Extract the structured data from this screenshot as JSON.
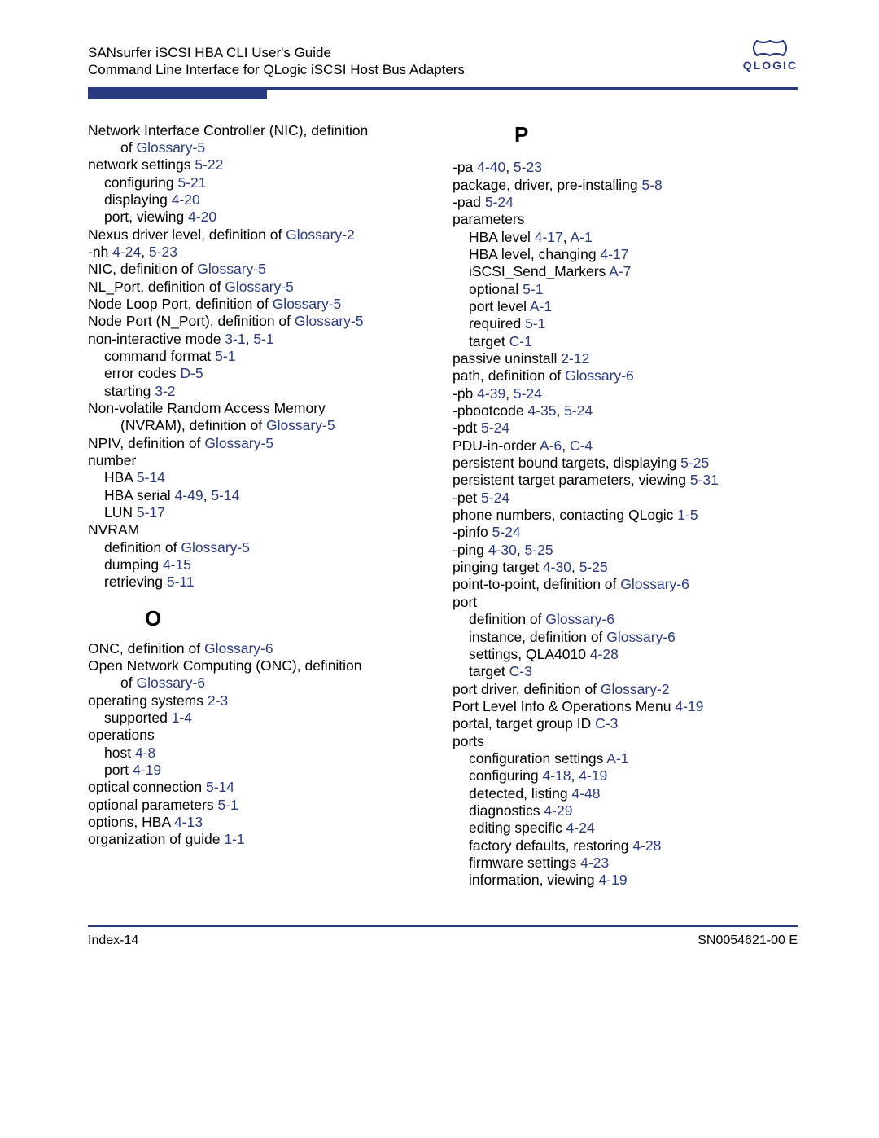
{
  "colors": {
    "link": "#2a3a7f",
    "rule": "#2a3a7f",
    "text": "#000000",
    "background": "#ffffff"
  },
  "typography": {
    "body_font": "Arial",
    "body_size_pt": 13,
    "heading_size_pt": 20
  },
  "header": {
    "title": "SANsurfer iSCSI HBA CLI User's Guide",
    "subtitle": "Command Line Interface for QLogic iSCSI Host Bus Adapters",
    "logo_text": "QLOGIC"
  },
  "footer": {
    "left": "Index-14",
    "right": "SN0054621-00  E"
  },
  "left_column": [
    {
      "t": "Network Interface Controller (NIC), definition",
      "i": 0
    },
    {
      "t": "of   ",
      "r": "Glossary-5",
      "i": 2
    },
    {
      "t": "network settings   ",
      "r": "5-22",
      "i": 0
    },
    {
      "t": "configuring   ",
      "r": "5-21",
      "i": 1
    },
    {
      "t": "displaying   ",
      "r": "4-20",
      "i": 1
    },
    {
      "t": "port, viewing   ",
      "r": "4-20",
      "i": 1
    },
    {
      "t": "Nexus driver level, definition of   ",
      "r": "Glossary-2",
      "i": 0
    },
    {
      "t": "-nh   ",
      "r": "4-24",
      "r2": "5-23",
      "i": 0
    },
    {
      "t": "NIC, definition of   ",
      "r": "Glossary-5",
      "i": 0
    },
    {
      "t": "NL_Port, definition of   ",
      "r": "Glossary-5",
      "i": 0
    },
    {
      "t": "Node Loop Port, definition of   ",
      "r": "Glossary-5",
      "i": 0
    },
    {
      "t": "Node Port (N_Port), definition of   ",
      "r": "Glossary-5",
      "i": 0
    },
    {
      "t": "non-interactive mode   ",
      "r": "3-1",
      "r2": "5-1",
      "i": 0
    },
    {
      "t": "command format   ",
      "r": "5-1",
      "i": 1
    },
    {
      "t": "error codes   ",
      "r": "D-5",
      "i": 1
    },
    {
      "t": "starting   ",
      "r": "3-2",
      "i": 1
    },
    {
      "t": "Non-volatile Random Access Memory",
      "i": 0
    },
    {
      "t": "(NVRAM), definition of   ",
      "r": "Glossary-5",
      "i": 2
    },
    {
      "t": "NPIV, definition of   ",
      "r": "Glossary-5",
      "i": 0
    },
    {
      "t": "number",
      "i": 0
    },
    {
      "t": "HBA   ",
      "r": "5-14",
      "i": 1
    },
    {
      "t": "HBA serial   ",
      "r": "4-49",
      "r2": "5-14",
      "i": 1
    },
    {
      "t": "LUN   ",
      "r": "5-17",
      "i": 1
    },
    {
      "t": "NVRAM",
      "i": 0
    },
    {
      "t": "definition of   ",
      "r": "Glossary-5",
      "i": 1
    },
    {
      "t": "dumping   ",
      "r": "4-15",
      "i": 1
    },
    {
      "t": "retrieving   ",
      "r": "5-11",
      "i": 1
    },
    {
      "heading": "O"
    },
    {
      "t": "ONC, definition of   ",
      "r": "Glossary-6",
      "i": 0
    },
    {
      "t": "Open Network Computing (ONC), definition",
      "i": 0
    },
    {
      "t": "of   ",
      "r": "Glossary-6",
      "i": 2
    },
    {
      "t": "operating systems   ",
      "r": "2-3",
      "i": 0
    },
    {
      "t": "supported   ",
      "r": "1-4",
      "i": 1
    },
    {
      "t": "operations",
      "i": 0
    },
    {
      "t": "host   ",
      "r": "4-8",
      "i": 1
    },
    {
      "t": "port   ",
      "r": "4-19",
      "i": 1
    },
    {
      "t": "optical connection   ",
      "r": "5-14",
      "i": 0
    },
    {
      "t": "optional parameters   ",
      "r": "5-1",
      "i": 0
    },
    {
      "t": "options, HBA   ",
      "r": "4-13",
      "i": 0
    },
    {
      "t": "organization of guide   ",
      "r": "1-1",
      "i": 0
    }
  ],
  "right_column": [
    {
      "heading": "P"
    },
    {
      "t": "-pa   ",
      "r": "4-40",
      "r2": "5-23",
      "i": 0
    },
    {
      "t": "package, driver, pre-installing   ",
      "r": "5-8",
      "i": 0
    },
    {
      "t": "-pad   ",
      "r": "5-24",
      "i": 0
    },
    {
      "t": "parameters",
      "i": 0
    },
    {
      "t": "HBA level   ",
      "r": "4-17",
      "r2": "A-1",
      "i": 1
    },
    {
      "t": "HBA level, changing   ",
      "r": "4-17",
      "i": 1
    },
    {
      "t": "iSCSI_Send_Markers   ",
      "r": "A-7",
      "i": 1
    },
    {
      "t": "optional   ",
      "r": "5-1",
      "i": 1
    },
    {
      "t": "port level   ",
      "r": "A-1",
      "i": 1
    },
    {
      "t": "required   ",
      "r": "5-1",
      "i": 1
    },
    {
      "t": "target   ",
      "r": "C-1",
      "i": 1
    },
    {
      "t": "passive uninstall   ",
      "r": "2-12",
      "i": 0
    },
    {
      "t": "path, definition of   ",
      "r": "Glossary-6",
      "i": 0
    },
    {
      "t": "-pb   ",
      "r": "4-39",
      "r2": "5-24",
      "i": 0
    },
    {
      "t": "-pbootcode   ",
      "r": "4-35",
      "r2": "5-24",
      "i": 0
    },
    {
      "t": "-pdt   ",
      "r": "5-24",
      "i": 0
    },
    {
      "t": "PDU-in-order   ",
      "r": "A-6",
      "r2": "C-4",
      "i": 0
    },
    {
      "t": "persistent bound targets, displaying   ",
      "r": "5-25",
      "i": 0
    },
    {
      "t": "persistent target parameters, viewing   ",
      "r": "5-31",
      "i": 0
    },
    {
      "t": "-pet   ",
      "r": "5-24",
      "i": 0
    },
    {
      "t": "phone numbers, contacting QLogic   ",
      "r": "1-5",
      "i": 0
    },
    {
      "t": "-pinfo   ",
      "r": "5-24",
      "i": 0
    },
    {
      "t": "-ping   ",
      "r": "4-30",
      "r2": "5-25",
      "i": 0
    },
    {
      "t": "pinging target   ",
      "r": "4-30",
      "r2": "5-25",
      "i": 0
    },
    {
      "t": "point-to-point, definition of   ",
      "r": "Glossary-6",
      "i": 0
    },
    {
      "t": "port",
      "i": 0
    },
    {
      "t": "definition of   ",
      "r": "Glossary-6",
      "i": 1
    },
    {
      "t": "instance, definition of   ",
      "r": "Glossary-6",
      "i": 1
    },
    {
      "t": "settings, QLA4010   ",
      "r": "4-28",
      "i": 1
    },
    {
      "t": "target   ",
      "r": "C-3",
      "i": 1
    },
    {
      "t": "port driver, definition of   ",
      "r": "Glossary-2",
      "i": 0
    },
    {
      "t": "Port Level Info & Operations Menu   ",
      "r": "4-19",
      "i": 0
    },
    {
      "t": "portal, target group ID   ",
      "r": "C-3",
      "i": 0
    },
    {
      "t": "ports",
      "i": 0
    },
    {
      "t": "configuration settings   ",
      "r": "A-1",
      "i": 1
    },
    {
      "t": "configuring   ",
      "r": "4-18",
      "r2": "4-19",
      "i": 1
    },
    {
      "t": "detected, listing   ",
      "r": "4-48",
      "i": 1
    },
    {
      "t": "diagnostics   ",
      "r": "4-29",
      "i": 1
    },
    {
      "t": "editing specific   ",
      "r": "4-24",
      "i": 1
    },
    {
      "t": "factory defaults, restoring   ",
      "r": "4-28",
      "i": 1
    },
    {
      "t": "firmware settings   ",
      "r": "4-23",
      "i": 1
    },
    {
      "t": "information, viewing   ",
      "r": "4-19",
      "i": 1
    }
  ]
}
